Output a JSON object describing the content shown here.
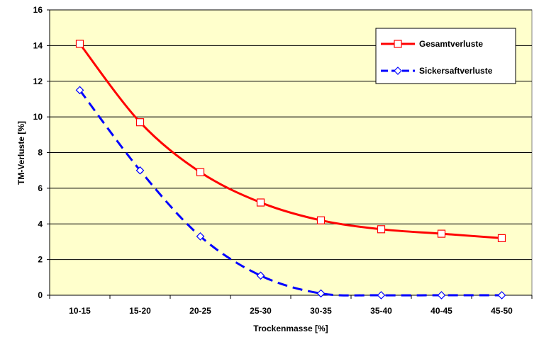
{
  "chart_data": {
    "type": "line",
    "title": "",
    "xlabel": "Trockenmasse [%]",
    "ylabel": "TM-Verluste [%]",
    "categories": [
      "10-15",
      "15-20",
      "20-25",
      "25-30",
      "30-35",
      "35-40",
      "40-45",
      "45-50"
    ],
    "ylim": [
      0,
      16
    ],
    "yticks": [
      "0",
      "2",
      "4",
      "6",
      "8",
      "10",
      "12",
      "14",
      "16"
    ],
    "grid": true,
    "legend_position": "top-right",
    "background_color": "#ffffcc",
    "series": [
      {
        "name": "Gesamtverluste",
        "values": [
          14.1,
          9.7,
          6.9,
          5.2,
          4.2,
          3.7,
          3.45,
          3.2
        ],
        "color": "#ff0000",
        "style": "solid",
        "marker": "square"
      },
      {
        "name": "Sickersaftverluste",
        "values": [
          11.5,
          7.0,
          3.3,
          1.1,
          0.1,
          0.0,
          0.0,
          0.0
        ],
        "color": "#0000ff",
        "style": "dashed",
        "marker": "diamond"
      }
    ]
  }
}
